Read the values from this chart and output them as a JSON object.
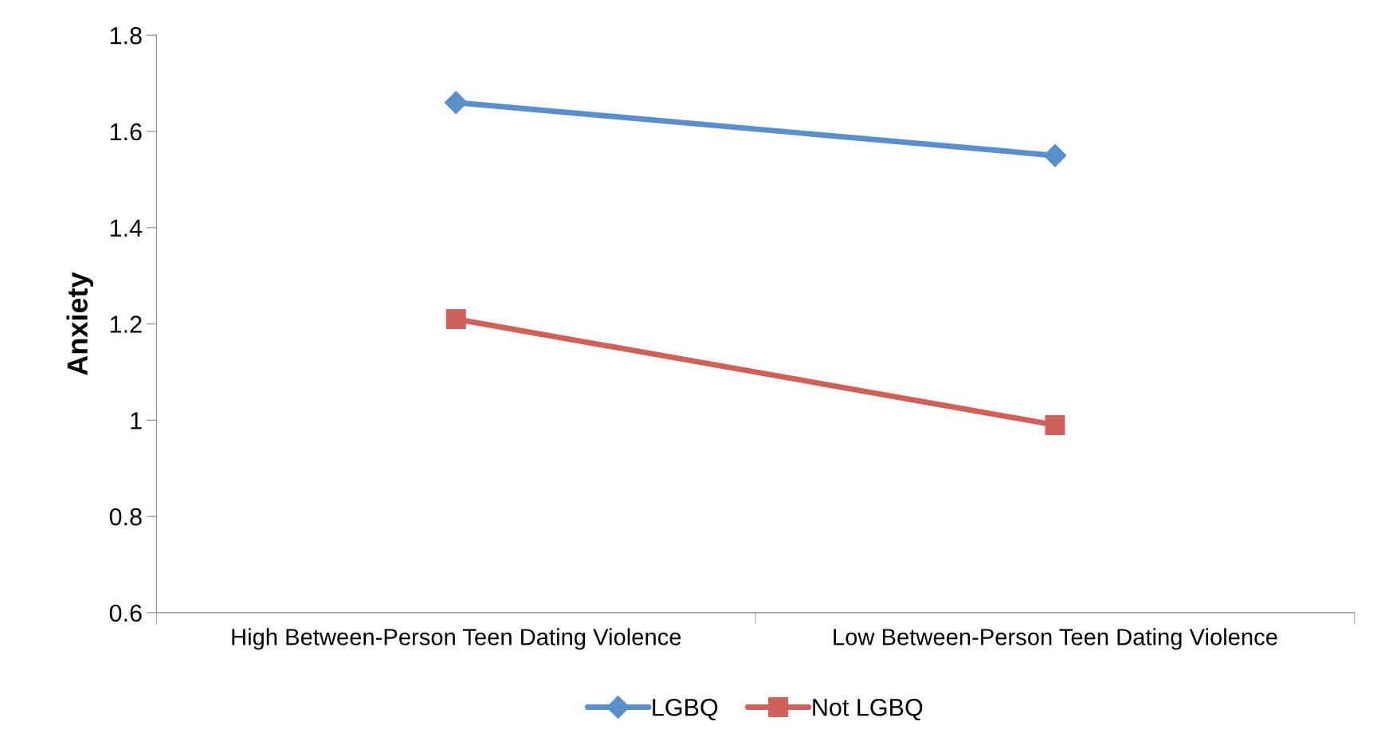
{
  "chart_data": {
    "type": "line",
    "ylabel": "Anxiety",
    "categories": [
      "High Between-Person Teen Dating Violence",
      "Low Between-Person Teen Dating Violence"
    ],
    "series": [
      {
        "name": "LGBQ",
        "color": "#5b8fcb",
        "values": [
          1.66,
          1.55
        ],
        "marker": "diamond"
      },
      {
        "name": "Not LGBQ",
        "color": "#d0605b",
        "values": [
          1.21,
          0.99
        ],
        "marker": "square"
      }
    ],
    "ylim": [
      0.6,
      1.8
    ],
    "yticks": [
      0.6,
      0.8,
      1,
      1.2,
      1.4,
      1.6,
      1.8
    ],
    "grid": false,
    "legend": "bottom",
    "line_style": "solid"
  }
}
